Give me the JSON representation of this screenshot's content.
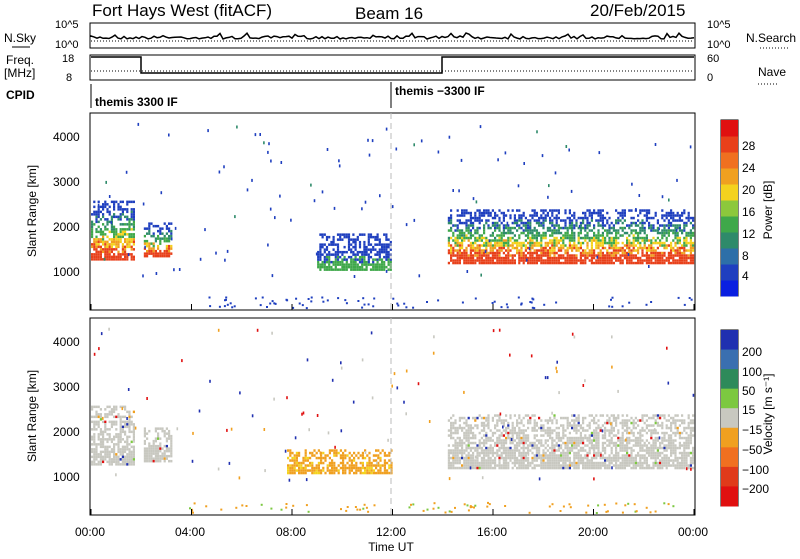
{
  "title": {
    "left": "Fort Hays West (fitACF)",
    "center": "Beam 16",
    "right": "20/Feb/2015"
  },
  "header": {
    "nsky_label": "N.Sky",
    "nsearch_label": "N.Search",
    "nsky_ticks": [
      "10^5",
      "10^0"
    ],
    "nsearch_ticks": [
      "10^5",
      "10^0"
    ],
    "freq_label": "Freq.",
    "freq_unit": "[MHz]",
    "freq_ticks": [
      "18",
      "8"
    ],
    "nave_ticks": [
      "60",
      "0"
    ],
    "nave_label": "Nave",
    "cpid_label": "CPID",
    "cpid_segments": [
      "themis 3300 IF",
      "themis −3300 IF"
    ]
  },
  "colors": {
    "scatter_blue": "#1f3fbf",
    "ground_gray": "#c8c8c0",
    "orange": "#f0a020"
  },
  "chart_data": [
    {
      "type": "heatmap",
      "name": "power",
      "ylabel": "Slant Range [km]",
      "yticks": [
        "4000",
        "3000",
        "2000",
        "1000"
      ],
      "ytick_values": [
        4000,
        3000,
        2000,
        1000
      ],
      "ylim": [
        0,
        4500
      ],
      "xlim": [
        0,
        24
      ],
      "colorbar": {
        "label": "Power [dB]",
        "ticks": [
          "28",
          "24",
          "20",
          "16",
          "12",
          "8",
          "4"
        ],
        "range": [
          0,
          30
        ]
      },
      "regions": [
        {
          "t0": 0.0,
          "t1": 1.7,
          "r0": 1150,
          "r1": 2500,
          "level": "mixed"
        },
        {
          "t0": 2.1,
          "t1": 3.2,
          "r0": 1250,
          "r1": 2000,
          "level": "mixed"
        },
        {
          "t0": 9.0,
          "t1": 11.9,
          "r0": 950,
          "r1": 1750,
          "level": "low"
        },
        {
          "t0": 14.2,
          "t1": 24.0,
          "r0": 1100,
          "r1": 2300,
          "level": "mixed"
        }
      ]
    },
    {
      "type": "heatmap",
      "name": "velocity",
      "ylabel": "Slant Range [km]",
      "yticks": [
        "4000",
        "3000",
        "2000",
        "1000"
      ],
      "ytick_values": [
        4000,
        3000,
        2000,
        1000
      ],
      "ylim": [
        0,
        4500
      ],
      "xlim": [
        0,
        24
      ],
      "xticks": [
        "00:00",
        "04:00",
        "08:00",
        "12:00",
        "16:00",
        "20:00",
        "00:00"
      ],
      "xtick_values": [
        0,
        4,
        8,
        12,
        16,
        20,
        24
      ],
      "xlabel": "Time UT",
      "colorbar": {
        "label": "Velocity [m s⁻¹]",
        "ticks": [
          "200",
          "100",
          "50",
          "15",
          "−15",
          "−50",
          "−100",
          "−200"
        ]
      },
      "regions": [
        {
          "t0": 0.0,
          "t1": 1.7,
          "r0": 1150,
          "r1": 2500,
          "level": "ground"
        },
        {
          "t0": 2.1,
          "t1": 3.2,
          "r0": 1250,
          "r1": 2000,
          "level": "ground"
        },
        {
          "t0": 7.8,
          "t1": 12.0,
          "r0": 950,
          "r1": 1500,
          "level": "neg"
        },
        {
          "t0": 14.2,
          "t1": 24.0,
          "r0": 1100,
          "r1": 2300,
          "level": "ground"
        }
      ]
    }
  ]
}
